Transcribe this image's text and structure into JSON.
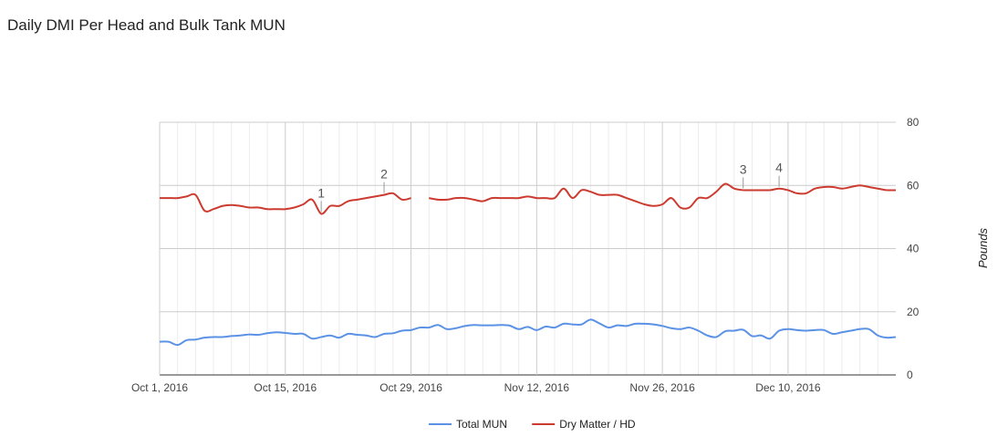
{
  "chart_data": {
    "type": "line",
    "title": "Daily DMI Per Head and Bulk Tank MUN",
    "ylabel": "Pounds",
    "ylim": [
      0,
      80
    ],
    "y_ticks": [
      "0",
      "20",
      "40",
      "60",
      "80"
    ],
    "x_start": "2016-10-01",
    "x_end": "2016-12-22",
    "x_ticks": [
      {
        "date": "2016-10-01",
        "label": "Oct 1, 2016"
      },
      {
        "date": "2016-10-15",
        "label": "Oct 15, 2016"
      },
      {
        "date": "2016-10-29",
        "label": "Oct 29, 2016"
      },
      {
        "date": "2016-11-12",
        "label": "Nov 12, 2016"
      },
      {
        "date": "2016-11-26",
        "label": "Nov 26, 2016"
      },
      {
        "date": "2016-12-10",
        "label": "Dec 10, 2016"
      }
    ],
    "grid": true,
    "legend_position": "bottom",
    "series": [
      {
        "name": "Total MUN",
        "color": "#5b92e5",
        "x": [
          "2016-10-01",
          "2016-10-02",
          "2016-10-03",
          "2016-10-04",
          "2016-10-05",
          "2016-10-06",
          "2016-10-07",
          "2016-10-08",
          "2016-10-09",
          "2016-10-10",
          "2016-10-11",
          "2016-10-12",
          "2016-10-13",
          "2016-10-14",
          "2016-10-15",
          "2016-10-16",
          "2016-10-17",
          "2016-10-18",
          "2016-10-19",
          "2016-10-20",
          "2016-10-21",
          "2016-10-22",
          "2016-10-23",
          "2016-10-24",
          "2016-10-25",
          "2016-10-26",
          "2016-10-27",
          "2016-10-28",
          "2016-10-29",
          "2016-10-30",
          "2016-10-31",
          "2016-11-01",
          "2016-11-02",
          "2016-11-03",
          "2016-11-04",
          "2016-11-05",
          "2016-11-06",
          "2016-11-07",
          "2016-11-08",
          "2016-11-09",
          "2016-11-10",
          "2016-11-11",
          "2016-11-12",
          "2016-11-13",
          "2016-11-14",
          "2016-11-15",
          "2016-11-16",
          "2016-11-17",
          "2016-11-18",
          "2016-11-19",
          "2016-11-20",
          "2016-11-21",
          "2016-11-22",
          "2016-11-23",
          "2016-11-24",
          "2016-11-25",
          "2016-11-26",
          "2016-11-27",
          "2016-11-28",
          "2016-11-29",
          "2016-11-30",
          "2016-12-01",
          "2016-12-02",
          "2016-12-03",
          "2016-12-04",
          "2016-12-05",
          "2016-12-06",
          "2016-12-07",
          "2016-12-08",
          "2016-12-09",
          "2016-12-10",
          "2016-12-11",
          "2016-12-12",
          "2016-12-13",
          "2016-12-14",
          "2016-12-15",
          "2016-12-16",
          "2016-12-17",
          "2016-12-18",
          "2016-12-19",
          "2016-12-20",
          "2016-12-21",
          "2016-12-22"
        ],
        "values": [
          10.5,
          10.5,
          9.5,
          11.0,
          11.2,
          11.8,
          12.0,
          12.0,
          12.3,
          12.5,
          12.8,
          12.7,
          13.2,
          13.5,
          13.3,
          13.0,
          13.0,
          11.5,
          12.0,
          12.5,
          11.8,
          13.0,
          12.7,
          12.5,
          12.0,
          13.0,
          13.2,
          14.0,
          14.2,
          15.0,
          15.0,
          15.8,
          14.5,
          14.8,
          15.5,
          15.8,
          15.7,
          15.7,
          15.8,
          15.6,
          14.5,
          15.2,
          14.2,
          15.3,
          15.0,
          16.2,
          16.0,
          16.0,
          17.5,
          16.3,
          15.0,
          15.7,
          15.5,
          16.2,
          16.2,
          16.0,
          15.5,
          14.8,
          14.5,
          15.0,
          14.0,
          12.5,
          12.0,
          13.8,
          14.0,
          14.3,
          12.3,
          12.5,
          11.5,
          14.0,
          14.5,
          14.2,
          14.0,
          14.2,
          14.2,
          13.0,
          13.5,
          14.0,
          14.5,
          14.5,
          12.5,
          11.8,
          12.0
        ]
      },
      {
        "name": "Dry Matter / HD",
        "color": "#cc3b2f",
        "x": [
          "2016-10-01",
          "2016-10-02",
          "2016-10-03",
          "2016-10-04",
          "2016-10-05",
          "2016-10-06",
          "2016-10-07",
          "2016-10-08",
          "2016-10-09",
          "2016-10-10",
          "2016-10-11",
          "2016-10-12",
          "2016-10-13",
          "2016-10-14",
          "2016-10-15",
          "2016-10-16",
          "2016-10-17",
          "2016-10-18",
          "2016-10-19",
          "2016-10-20",
          "2016-10-21",
          "2016-10-22",
          "2016-10-23",
          "2016-10-24",
          "2016-10-25",
          "2016-10-26",
          "2016-10-27",
          "2016-10-28",
          "2016-10-29",
          "2016-10-30",
          "2016-10-31",
          "2016-11-01",
          "2016-11-02",
          "2016-11-03",
          "2016-11-04",
          "2016-11-05",
          "2016-11-06",
          "2016-11-07",
          "2016-11-08",
          "2016-11-09",
          "2016-11-10",
          "2016-11-11",
          "2016-11-12",
          "2016-11-13",
          "2016-11-14",
          "2016-11-15",
          "2016-11-16",
          "2016-11-17",
          "2016-11-18",
          "2016-11-19",
          "2016-11-20",
          "2016-11-21",
          "2016-11-22",
          "2016-11-23",
          "2016-11-24",
          "2016-11-25",
          "2016-11-26",
          "2016-11-27",
          "2016-11-28",
          "2016-11-29",
          "2016-11-30",
          "2016-12-01",
          "2016-12-02",
          "2016-12-03",
          "2016-12-04",
          "2016-12-05",
          "2016-12-06",
          "2016-12-07",
          "2016-12-08",
          "2016-12-09",
          "2016-12-10",
          "2016-12-11",
          "2016-12-12",
          "2016-12-13",
          "2016-12-14",
          "2016-12-15",
          "2016-12-16",
          "2016-12-17",
          "2016-12-18",
          "2016-12-19",
          "2016-12-20",
          "2016-12-21",
          "2016-12-22"
        ],
        "values": [
          56.0,
          56.0,
          56.0,
          56.5,
          57.0,
          52.0,
          52.5,
          53.5,
          53.8,
          53.5,
          53.0,
          53.0,
          52.5,
          52.5,
          52.5,
          53.0,
          54.0,
          55.5,
          51.0,
          53.5,
          53.5,
          55.0,
          55.5,
          56.0,
          56.5,
          57.0,
          57.5,
          55.5,
          56.0,
          null,
          56.0,
          55.5,
          55.5,
          56.0,
          56.0,
          55.5,
          55.0,
          56.0,
          56.0,
          56.0,
          56.0,
          56.5,
          56.0,
          56.0,
          56.0,
          59.0,
          56.0,
          58.5,
          58.0,
          57.0,
          57.0,
          57.0,
          56.0,
          55.0,
          54.0,
          53.5,
          54.0,
          56.0,
          53.0,
          53.0,
          56.0,
          56.0,
          58.0,
          60.5,
          59.0,
          58.5,
          58.5,
          58.5,
          58.5,
          59.0,
          58.5,
          57.5,
          57.5,
          59.0,
          59.5,
          59.5,
          59.0,
          59.5,
          60.0,
          59.5,
          59.0,
          58.5,
          58.5
        ]
      }
    ],
    "annotations": [
      {
        "series": "Dry Matter / HD",
        "date": "2016-10-19",
        "label": "1"
      },
      {
        "series": "Dry Matter / HD",
        "date": "2016-10-26",
        "label": "2"
      },
      {
        "series": "Dry Matter / HD",
        "date": "2016-12-05",
        "label": "3"
      },
      {
        "series": "Dry Matter / HD",
        "date": "2016-12-09",
        "label": "4"
      }
    ]
  }
}
